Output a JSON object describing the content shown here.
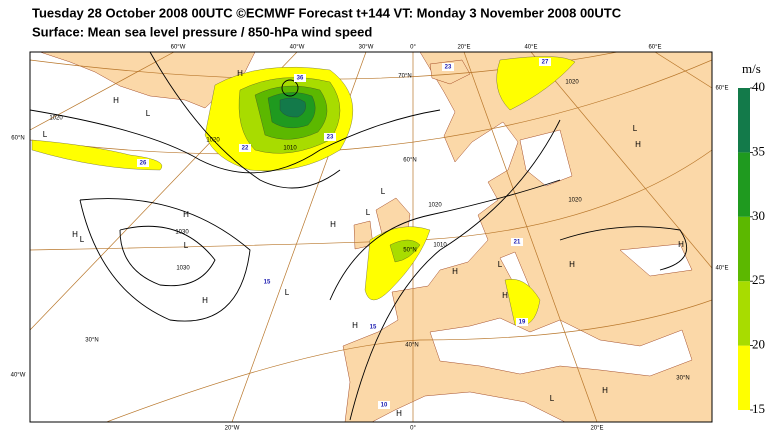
{
  "header": {
    "title": "Tuesday 28 October 2008 00UTC ©ECMWF Forecast t+144 VT: Monday 3 November 2008 00UTC",
    "subtitle": "Surface: Mean sea level pressure / 850-hPa wind speed"
  },
  "colorbar": {
    "unit": "m/s",
    "ticks": [
      15,
      20,
      25,
      30,
      35,
      40
    ],
    "colors": [
      "#ffff00",
      "#a8dc00",
      "#5cb800",
      "#1f9a1f",
      "#137a4a"
    ]
  },
  "map": {
    "graticule_labels": [
      "60°W",
      "40°W",
      "30°W",
      "0°",
      "20°E",
      "40°E",
      "60°E",
      "60°E",
      "40°E",
      "60°N",
      "40°W",
      "20°W",
      "0°",
      "20°E",
      "70°N",
      "60°N",
      "50°N",
      "40°N",
      "30°N",
      "30°N"
    ],
    "pressure_centers": [
      "H",
      "L",
      "H",
      "L",
      "H",
      "H",
      "L",
      "L",
      "H",
      "L",
      "H",
      "L",
      "H",
      "H",
      "H",
      "L",
      "H",
      "L",
      "H",
      "H",
      "L",
      "H",
      "L",
      "H"
    ],
    "isobar_labels": [
      "1020",
      "1020",
      "1010",
      "1030",
      "1030",
      "1020",
      "1010",
      "1020",
      "1020"
    ],
    "wind_maxima": [
      "26",
      "22",
      "23",
      "36",
      "23",
      "27",
      "21",
      "15",
      "15",
      "19",
      "10"
    ]
  }
}
